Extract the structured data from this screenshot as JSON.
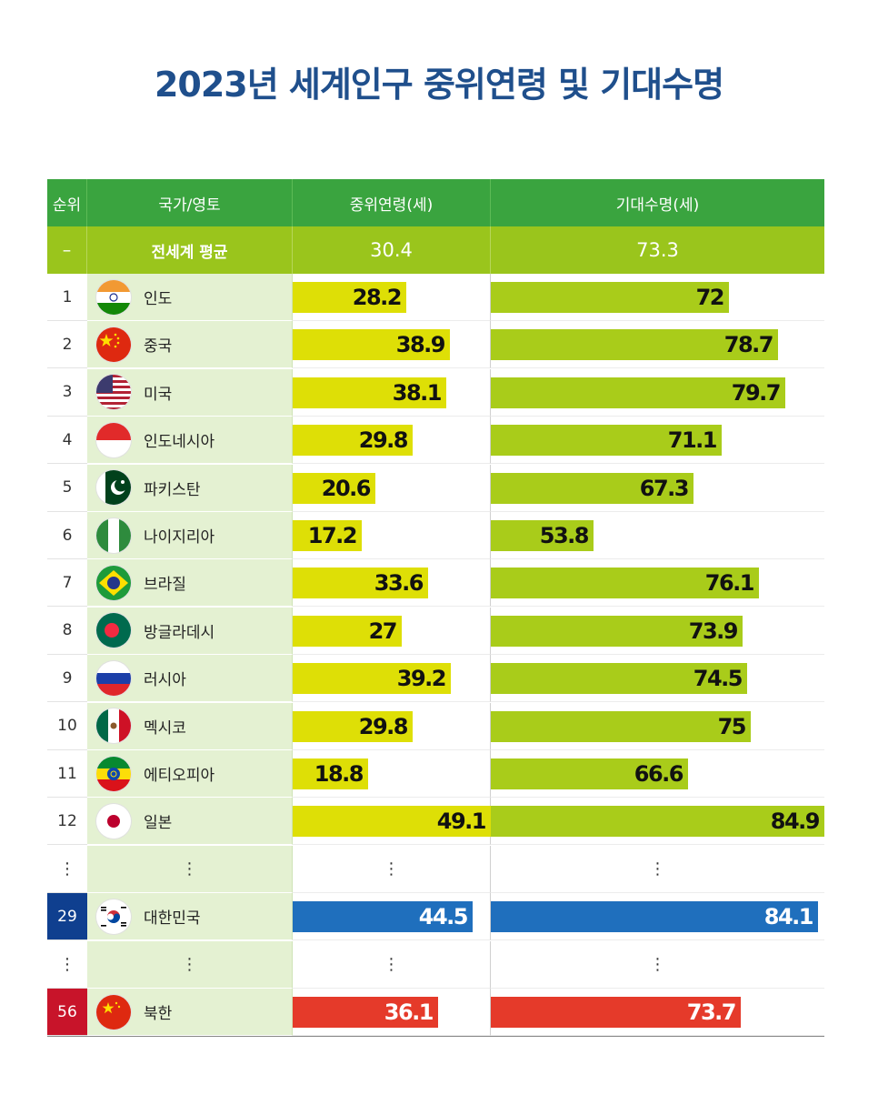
{
  "title": "2023년 세계인구 중위연령 및 기대수명",
  "header": {
    "rank": "순위",
    "country": "국가/영토",
    "median_age": "중위연령(세)",
    "life_expectancy": "기대수명(세)"
  },
  "world_avg": {
    "rank": "–",
    "label": "전세계 평균",
    "median_age": "30.4",
    "life_expectancy": "73.3"
  },
  "ellipsis": "⋮",
  "colors": {
    "header": "#3aa43f",
    "avg_row": "#9ac51c",
    "median_bar": "#dedf06",
    "life_bar": "#a9cc1a",
    "korea_bar": "#1f6fbd",
    "north_korea_bar": "#e53a2a",
    "title": "#1f4f8c"
  },
  "chart_data": {
    "type": "bar",
    "title": "2023년 세계인구 중위연령 및 기대수명",
    "series": [
      {
        "name": "중위연령(세)",
        "values": [
          28.2,
          38.9,
          38.1,
          29.8,
          20.6,
          17.2,
          33.6,
          27,
          39.2,
          29.8,
          18.8,
          49.1,
          44.5,
          36.1
        ]
      },
      {
        "name": "기대수명(세)",
        "values": [
          72,
          78.7,
          79.7,
          71.1,
          67.3,
          53.8,
          76.1,
          73.9,
          74.5,
          75,
          66.6,
          84.9,
          84.1,
          73.7
        ]
      }
    ],
    "categories": [
      "인도",
      "중국",
      "미국",
      "인도네시아",
      "파키스탄",
      "나이지리아",
      "브라질",
      "방글라데시",
      "러시아",
      "멕시코",
      "에티오피아",
      "일본",
      "대한민국",
      "북한"
    ],
    "rows": [
      {
        "rank": "1",
        "country": "인도",
        "flag": "india-flag",
        "median_age": 28.2,
        "life_expectancy": 72,
        "median_label": "28.2",
        "life_label": "72"
      },
      {
        "rank": "2",
        "country": "중국",
        "flag": "china-flag",
        "median_age": 38.9,
        "life_expectancy": 78.7,
        "median_label": "38.9",
        "life_label": "78.7"
      },
      {
        "rank": "3",
        "country": "미국",
        "flag": "usa-flag",
        "median_age": 38.1,
        "life_expectancy": 79.7,
        "median_label": "38.1",
        "life_label": "79.7"
      },
      {
        "rank": "4",
        "country": "인도네시아",
        "flag": "indonesia-flag",
        "median_age": 29.8,
        "life_expectancy": 71.1,
        "median_label": "29.8",
        "life_label": "71.1"
      },
      {
        "rank": "5",
        "country": "파키스탄",
        "flag": "pakistan-flag",
        "median_age": 20.6,
        "life_expectancy": 67.3,
        "median_label": "20.6",
        "life_label": "67.3"
      },
      {
        "rank": "6",
        "country": "나이지리아",
        "flag": "nigeria-flag",
        "median_age": 17.2,
        "life_expectancy": 53.8,
        "median_label": "17.2",
        "life_label": "53.8"
      },
      {
        "rank": "7",
        "country": "브라질",
        "flag": "brazil-flag",
        "median_age": 33.6,
        "life_expectancy": 76.1,
        "median_label": "33.6",
        "life_label": "76.1"
      },
      {
        "rank": "8",
        "country": "방글라데시",
        "flag": "bangladesh-flag",
        "median_age": 27,
        "life_expectancy": 73.9,
        "median_label": "27",
        "life_label": "73.9"
      },
      {
        "rank": "9",
        "country": "러시아",
        "flag": "russia-flag",
        "median_age": 39.2,
        "life_expectancy": 74.5,
        "median_label": "39.2",
        "life_label": "74.5"
      },
      {
        "rank": "10",
        "country": "멕시코",
        "flag": "mexico-flag",
        "median_age": 29.8,
        "life_expectancy": 75,
        "median_label": "29.8",
        "life_label": "75"
      },
      {
        "rank": "11",
        "country": "에티오피아",
        "flag": "ethiopia-flag",
        "median_age": 18.8,
        "life_expectancy": 66.6,
        "median_label": "18.8",
        "life_label": "66.6"
      },
      {
        "rank": "12",
        "country": "일본",
        "flag": "japan-flag",
        "median_age": 49.1,
        "life_expectancy": 84.9,
        "median_label": "49.1",
        "life_label": "84.9"
      },
      {
        "separator": true
      },
      {
        "rank": "29",
        "country": "대한민국",
        "flag": "korea-flag",
        "median_age": 44.5,
        "life_expectancy": 84.1,
        "median_label": "44.5",
        "life_label": "84.1",
        "highlight": "korea"
      },
      {
        "separator": true
      },
      {
        "rank": "56",
        "country": "북한",
        "flag": "north-korea-flag",
        "median_age": 36.1,
        "life_expectancy": 73.7,
        "median_label": "36.1",
        "life_label": "73.7",
        "highlight": "nk"
      }
    ],
    "median_age_max": 49.1,
    "life_expectancy_min": 40,
    "life_expectancy_max": 84.9,
    "grid": false
  }
}
